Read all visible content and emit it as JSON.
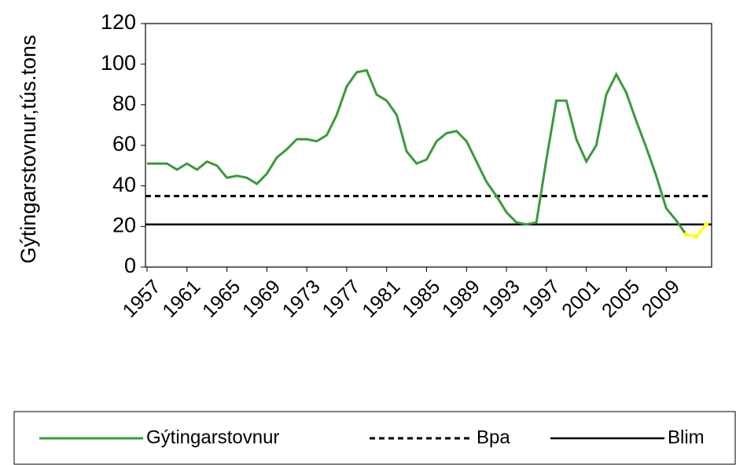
{
  "chart_data": {
    "type": "line",
    "y_label": "Gýtingarstovnur,tús.tons",
    "x": [
      1957,
      1958,
      1959,
      1960,
      1961,
      1962,
      1963,
      1964,
      1965,
      1966,
      1967,
      1968,
      1969,
      1970,
      1971,
      1972,
      1973,
      1974,
      1975,
      1976,
      1977,
      1978,
      1979,
      1980,
      1981,
      1982,
      1983,
      1984,
      1985,
      1986,
      1987,
      1988,
      1989,
      1990,
      1991,
      1992,
      1993,
      1994,
      1995,
      1996,
      1997,
      1998,
      1999,
      2000,
      2001,
      2002,
      2003,
      2004,
      2005,
      2006,
      2007,
      2008,
      2009,
      2010,
      2011,
      2012,
      2013
    ],
    "series": [
      {
        "name": "Gýtingarstovnur",
        "color": "#3a9a3a",
        "values": [
          51,
          51,
          51,
          48,
          51,
          48,
          52,
          50,
          44,
          45,
          44,
          41,
          46,
          54,
          58,
          63,
          63,
          62,
          65,
          75,
          89,
          96,
          97,
          85,
          82,
          75,
          57,
          51,
          53,
          62,
          66,
          67,
          62,
          52,
          42,
          35,
          27,
          22,
          21,
          22,
          53,
          82,
          82,
          63,
          52,
          60,
          85,
          95,
          86,
          72,
          59,
          45,
          29,
          23,
          16,
          null,
          null
        ]
      },
      {
        "color": "#ffff00",
        "values": [
          null,
          null,
          null,
          null,
          null,
          null,
          null,
          null,
          null,
          null,
          null,
          null,
          null,
          null,
          null,
          null,
          null,
          null,
          null,
          null,
          null,
          null,
          null,
          null,
          null,
          null,
          null,
          null,
          null,
          null,
          null,
          null,
          null,
          null,
          null,
          null,
          null,
          null,
          null,
          null,
          null,
          null,
          null,
          null,
          null,
          null,
          null,
          null,
          null,
          null,
          null,
          null,
          null,
          null,
          16,
          15,
          21
        ]
      }
    ],
    "reference_lines": [
      {
        "name": "Bpa",
        "value": 35,
        "color": "#000000",
        "style": "dashed"
      },
      {
        "name": "Blim",
        "value": 21,
        "color": "#000000",
        "style": "solid"
      }
    ],
    "xlim": [
      1957,
      2013
    ],
    "xticks": [
      1957,
      1961,
      1965,
      1969,
      1973,
      1977,
      1981,
      1985,
      1989,
      1993,
      1997,
      2001,
      2005,
      2009
    ],
    "ylim": [
      0,
      120
    ],
    "yticks": [
      0,
      20,
      40,
      60,
      80,
      100,
      120
    ]
  }
}
